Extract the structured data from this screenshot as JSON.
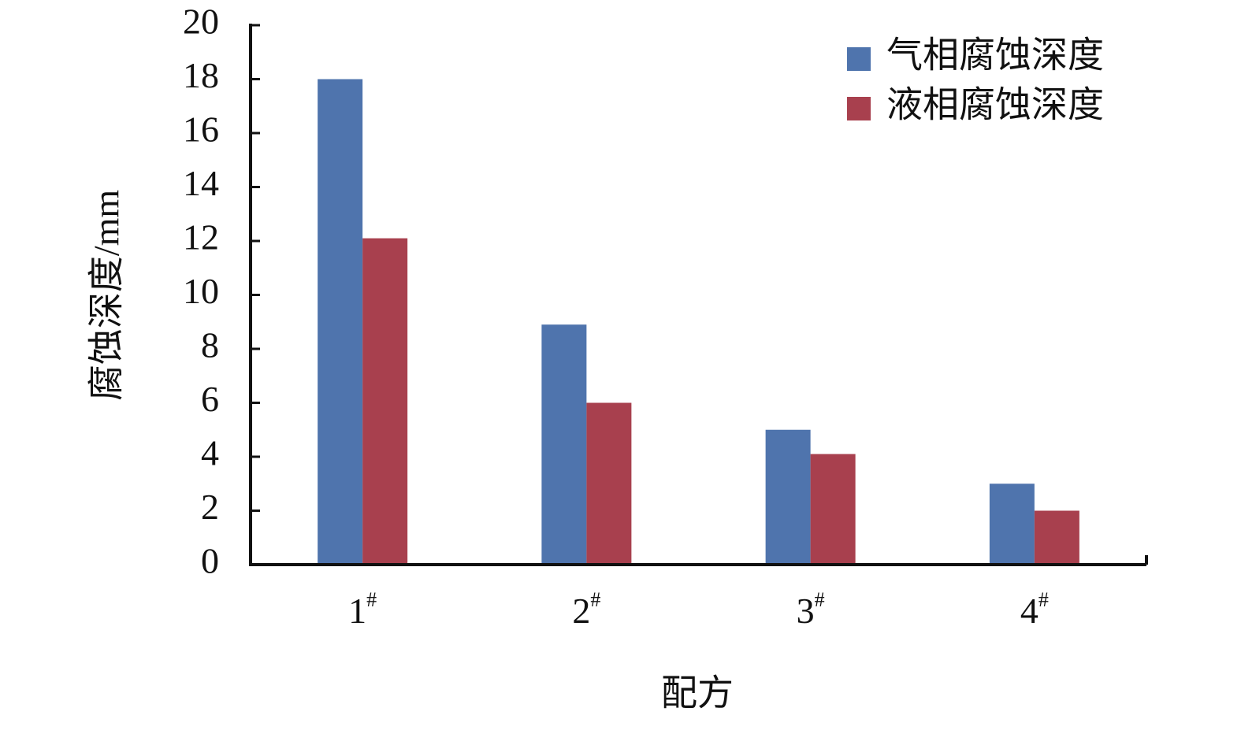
{
  "chart_data": {
    "type": "bar",
    "y_label": "腐蚀深度/mm",
    "x_label": "配方",
    "categories": [
      "1#",
      "2#",
      "3#",
      "4#"
    ],
    "series": [
      {
        "name": "气相腐蚀深度",
        "color": "#4f74ad",
        "values": [
          18,
          8.9,
          5,
          3
        ]
      },
      {
        "name": "液相腐蚀深度",
        "color": "#a8404e",
        "values": [
          12.1,
          6,
          4.1,
          2
        ]
      }
    ],
    "ylim": [
      0,
      20
    ],
    "yticks": [
      0,
      2,
      4,
      6,
      8,
      10,
      12,
      14,
      16,
      18,
      20
    ],
    "grid": false,
    "legend": "top-right"
  }
}
